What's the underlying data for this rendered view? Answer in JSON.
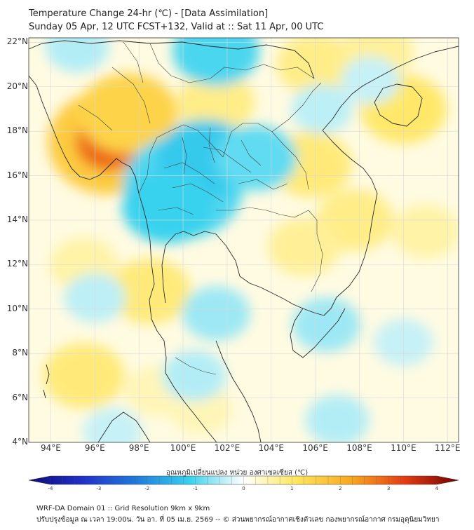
{
  "title": {
    "line1": "Temperature Change 24-hr (℃) - [Data Assimilation]",
    "line2": "Sunday 05 Apr, 12 UTC FCST+132, Valid at :: Sat 11 Apr, 00 UTC"
  },
  "axes": {
    "lat_labels": [
      "22°N",
      "20°N",
      "18°N",
      "16°N",
      "14°N",
      "12°N",
      "10°N",
      "8°N",
      "6°N",
      "4°N"
    ],
    "lon_labels": [
      "94°E",
      "96°E",
      "98°E",
      "100°E",
      "102°E",
      "104°E",
      "106°E",
      "108°E",
      "110°E",
      "112°E"
    ],
    "lat_range": [
      4,
      22.2
    ],
    "lon_range": [
      93,
      112.5
    ]
  },
  "colorbar": {
    "title": "อุณหภูมิเปลี่ยนแปลง หน่วย องศาเซลเซียส (℃)",
    "min": -4,
    "max": 4,
    "ticks": [
      "-4",
      "-3",
      "-2",
      "-1",
      "0",
      "1",
      "2",
      "3",
      "4"
    ]
  },
  "footer": {
    "line1": "WRF-DA Domain 01 :: Grid Resolution 9km x 9km",
    "line2": "ปรับปรุงข้อมูล ณ เวลา 19:00น. วัน อา. ที่ 05 เม.ย. 2569 -- © ส่วนพยากรณ์อากาศเชิงตัวเลข กองพยากรณ์อากาศ กรมอุตุนิยมวิทยา"
  },
  "features": [
    {
      "name": "max-warm-myanmar",
      "lon": 96.6,
      "lat": 17.5,
      "value": 2.6
    },
    {
      "name": "warm-myanmar-central",
      "lon": 97.5,
      "lat": 18.8,
      "value": 1.3
    },
    {
      "name": "warm-north-laos",
      "lon": 101.5,
      "lat": 19.3,
      "value": 0.7
    },
    {
      "name": "warm-hainan",
      "lon": 110.0,
      "lat": 19.0,
      "value": 0.9
    },
    {
      "name": "warm-north-vietnam",
      "lon": 106.0,
      "lat": 21.0,
      "value": 0.7
    },
    {
      "name": "warm-guangxi",
      "lon": 108.8,
      "lat": 21.6,
      "value": 0.6
    },
    {
      "name": "warm-laos-east",
      "lon": 105.8,
      "lat": 16.5,
      "value": 0.8
    },
    {
      "name": "warm-vietnam-central",
      "lon": 107.8,
      "lat": 14.0,
      "value": 0.7
    },
    {
      "name": "warm-cambodia-east",
      "lon": 105.5,
      "lat": 12.8,
      "value": 0.6
    },
    {
      "name": "warm-tanintharyi",
      "lon": 98.5,
      "lat": 10.8,
      "value": 0.8
    },
    {
      "name": "warm-andaman-west",
      "lon": 95.5,
      "lat": 12.0,
      "value": 0.5
    },
    {
      "name": "warm-south-west",
      "lon": 95.5,
      "lat": 7.0,
      "value": 0.8
    },
    {
      "name": "warm-south-china-sea",
      "lon": 111.0,
      "lat": 13.5,
      "value": 0.5
    },
    {
      "name": "warm-malay-coast",
      "lon": 100.8,
      "lat": 5.5,
      "value": 0.4
    },
    {
      "name": "warm-malaya-sw",
      "lon": 98.8,
      "lat": 6.3,
      "value": 0.4
    },
    {
      "name": "cool-central-thailand",
      "lon": 100.0,
      "lat": 15.5,
      "value": -1.6
    },
    {
      "name": "cool-lower-north",
      "lon": 101.0,
      "lat": 16.8,
      "value": -1.1
    },
    {
      "name": "cool-upper-thailand-west",
      "lon": 99.3,
      "lat": 14.6,
      "value": -1.0
    },
    {
      "name": "cool-isan-north",
      "lon": 103.3,
      "lat": 16.8,
      "value": -0.8
    },
    {
      "name": "cool-north-edge",
      "lon": 101.5,
      "lat": 21.6,
      "value": -0.9
    },
    {
      "name": "cool-northwest-edge",
      "lon": 95.2,
      "lat": 21.8,
      "value": -0.4
    },
    {
      "name": "cool-gulf",
      "lon": 101.5,
      "lat": 9.8,
      "value": -0.5
    },
    {
      "name": "cool-mekong-delta",
      "lon": 106.5,
      "lat": 9.3,
      "value": -0.5
    },
    {
      "name": "cool-andaman-central",
      "lon": 96.0,
      "lat": 10.5,
      "value": -0.35
    },
    {
      "name": "cool-south-central",
      "lon": 100.5,
      "lat": 7.0,
      "value": -0.4
    },
    {
      "name": "cool-south-east-sea",
      "lon": 110.0,
      "lat": 8.5,
      "value": -0.3
    },
    {
      "name": "cool-borneo-west",
      "lon": 107.0,
      "lat": 5.0,
      "value": -0.4
    },
    {
      "name": "cool-vietnam-north",
      "lon": 106.3,
      "lat": 19.0,
      "value": -0.35
    },
    {
      "name": "cool-gulf-tonkin",
      "lon": 108.5,
      "lat": 20.3,
      "value": -0.3
    },
    {
      "name": "cool-andaman-south",
      "lon": 96.8,
      "lat": 4.5,
      "value": -0.3
    }
  ],
  "colors": {
    "cold_end": "#0c0c75",
    "warm_end": "#6e0000",
    "neutral": "#ffffff",
    "coastline": "#2a2a2a",
    "grid": "#d8d8d8"
  }
}
